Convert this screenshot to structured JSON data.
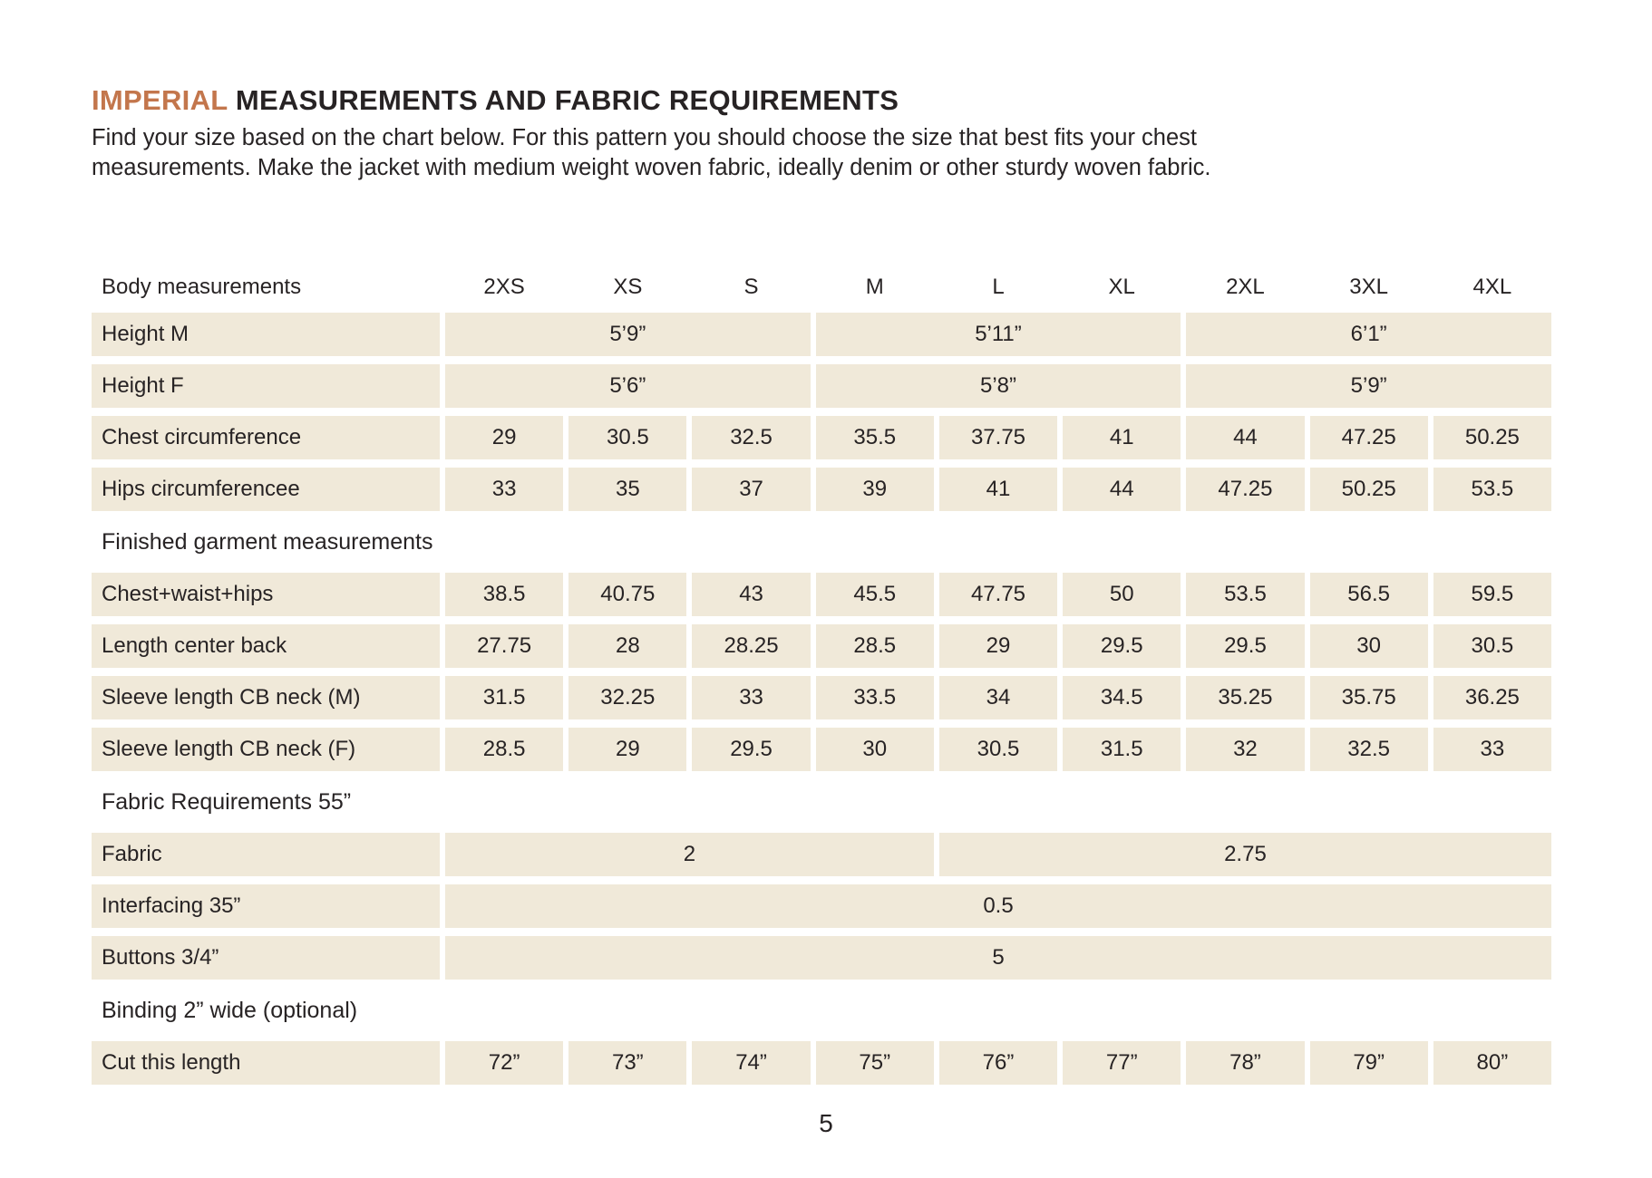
{
  "header": {
    "title_accent": "IMPERIAL",
    "title_rest": "MEASUREMENTS AND FABRIC REQUIREMENTS",
    "subtitle": "Find your size based on the chart below. For this pattern you should choose the size that best fits your chest measurements. Make the jacket with medium weight woven fabric, ideally denim or other sturdy woven fabric."
  },
  "footer": {
    "page_number": "5"
  },
  "colors": {
    "accent": "#C3764C",
    "cell_background": "#F0E9D9",
    "text": "#272324"
  },
  "chart_data": {
    "type": "table",
    "title": "Imperial measurements and fabric requirements",
    "column_headers": [
      "Body measurements",
      "2XS",
      "XS",
      "S",
      "M",
      "L",
      "XL",
      "2XL",
      "3XL",
      "4XL"
    ],
    "rows": [
      {
        "kind": "data",
        "label": "Height M",
        "cells": [
          {
            "text": "5’9”",
            "span": 3
          },
          {
            "text": "5’11”",
            "span": 3
          },
          {
            "text": "6’1”",
            "span": 3
          }
        ]
      },
      {
        "kind": "data",
        "label": "Height F",
        "cells": [
          {
            "text": "5’6”",
            "span": 3
          },
          {
            "text": "5’8”",
            "span": 3
          },
          {
            "text": "5’9”",
            "span": 3
          }
        ]
      },
      {
        "kind": "data",
        "label": "Chest circumference",
        "cells": [
          "29",
          "30.5",
          "32.5",
          "35.5",
          "37.75",
          "41",
          "44",
          "47.25",
          "50.25"
        ]
      },
      {
        "kind": "data",
        "label": "Hips circumferencee",
        "cells": [
          "33",
          "35",
          "37",
          "39",
          "41",
          "44",
          "47.25",
          "50.25",
          "53.5"
        ]
      },
      {
        "kind": "section",
        "label": "Finished garment measurements"
      },
      {
        "kind": "data",
        "label": "Chest+waist+hips",
        "cells": [
          "38.5",
          "40.75",
          "43",
          "45.5",
          "47.75",
          "50",
          "53.5",
          "56.5",
          "59.5"
        ]
      },
      {
        "kind": "data",
        "label": "Length center back",
        "cells": [
          "27.75",
          "28",
          "28.25",
          "28.5",
          "29",
          "29.5",
          "29.5",
          "30",
          "30.5"
        ]
      },
      {
        "kind": "data",
        "label": "Sleeve length CB neck (M)",
        "cells": [
          "31.5",
          "32.25",
          "33",
          "33.5",
          "34",
          "34.5",
          "35.25",
          "35.75",
          "36.25"
        ]
      },
      {
        "kind": "data",
        "label": "Sleeve length CB neck (F)",
        "cells": [
          "28.5",
          "29",
          "29.5",
          "30",
          "30.5",
          "31.5",
          "32",
          "32.5",
          "33"
        ]
      },
      {
        "kind": "section",
        "label": "Fabric Requirements 55”"
      },
      {
        "kind": "data",
        "label": "Fabric",
        "cells": [
          {
            "text": "2",
            "span": 4
          },
          {
            "text": "2.75",
            "span": 5
          }
        ]
      },
      {
        "kind": "data",
        "label": "Interfacing 35”",
        "cells": [
          {
            "text": "0.5",
            "span": 9
          }
        ]
      },
      {
        "kind": "data",
        "label": "Buttons 3/4”",
        "cells": [
          {
            "text": "5",
            "span": 9
          }
        ]
      },
      {
        "kind": "section",
        "label": "Binding 2” wide (optional)"
      },
      {
        "kind": "data",
        "label": "Cut this length",
        "cells": [
          "72”",
          "73”",
          "74”",
          "75”",
          "76”",
          "77”",
          "78”",
          "79”",
          "80”"
        ]
      }
    ]
  }
}
